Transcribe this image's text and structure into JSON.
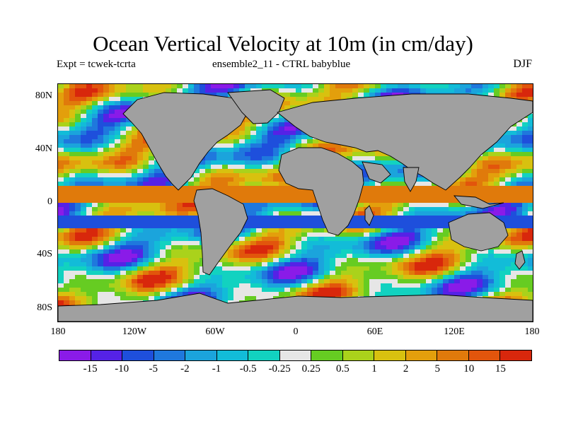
{
  "title": "Ocean Vertical Velocity at 10m (in cm/day)",
  "subtitle_left": "Expt = tcwek-tcrta",
  "subtitle_center": "ensemble2_11 - CTRL babyblue",
  "season": "DJF",
  "axis": {
    "y_ticks": [
      "80N",
      "40N",
      "0",
      "40S",
      "80S"
    ],
    "x_ticks": [
      "180",
      "120W",
      "60W",
      "0",
      "60E",
      "120E",
      "180"
    ],
    "lat_range": [
      -90,
      90
    ],
    "lon_range": [
      -180,
      180
    ]
  },
  "colorbar": {
    "labels": [
      "-15",
      "-10",
      "-5",
      "-2",
      "-1",
      "-0.5",
      "-0.25",
      "0.25",
      "0.5",
      "1",
      "2",
      "5",
      "10",
      "15"
    ],
    "colors": [
      "#8a1be8",
      "#5522e6",
      "#1e4fdc",
      "#1f78dd",
      "#1ba4dc",
      "#12bcd8",
      "#12d2c0",
      "#e6e6e6",
      "#66cc22",
      "#aad21b",
      "#d8c10f",
      "#e39f0c",
      "#e07a0b",
      "#e2550c",
      "#d8270c"
    ]
  },
  "colors": {
    "land": "#a0a0a0",
    "coast": "#000000",
    "border": "#000000"
  }
}
